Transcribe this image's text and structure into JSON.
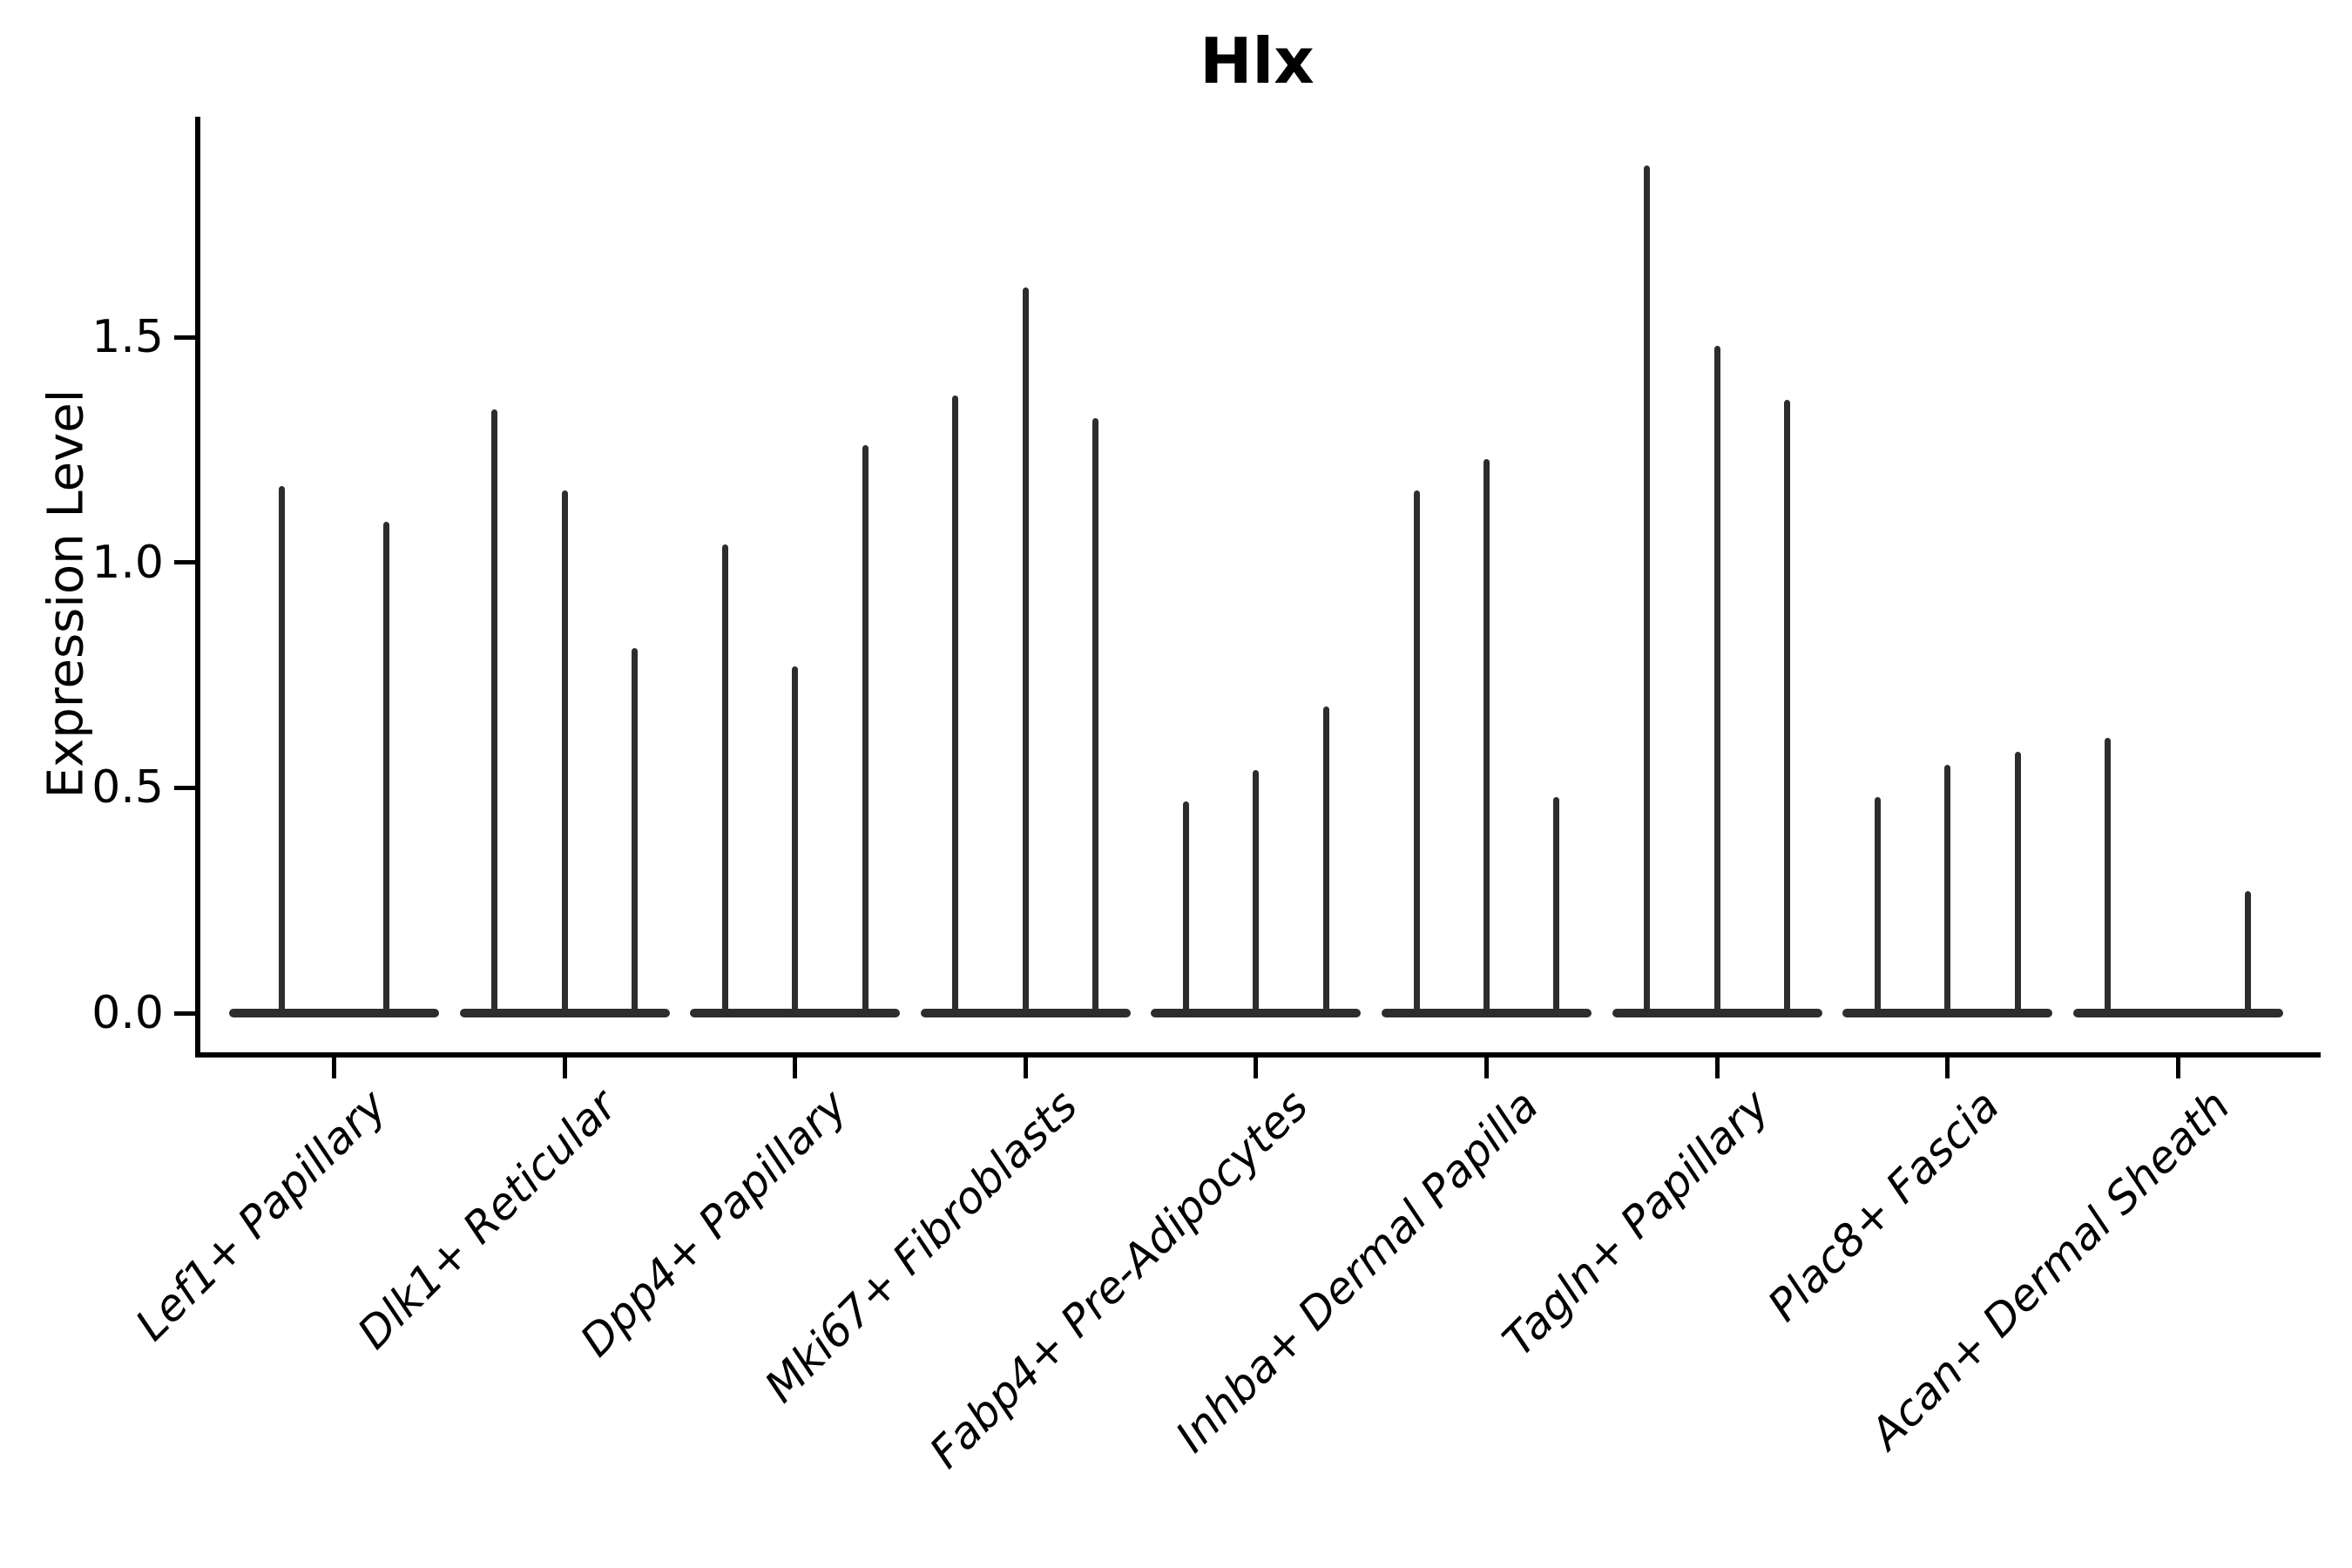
{
  "title": "Hlx",
  "y_axis": {
    "label": "Expression Level",
    "tick_labels": [
      "0.0",
      "0.5",
      "1.0",
      "1.5"
    ],
    "tick_values": [
      0.0,
      0.5,
      1.0,
      1.5
    ]
  },
  "chart_data": {
    "type": "violin",
    "title": "Hlx",
    "xlabel": "",
    "ylabel": "Expression Level",
    "ylim": [
      0,
      1.97
    ],
    "yticks": [
      0.0,
      0.5,
      1.0,
      1.5
    ],
    "grid": false,
    "legend": "none",
    "categories": [
      "Lef1+ Papillary",
      "Dlk1+ Reticular",
      "Dpp4+ Papillary",
      "Mki67+ Fibroblasts",
      "Fabp4+ Pre-Adipocytes",
      "Inhba+ Dermal Papilla",
      "Tagln+ Papillary",
      "Plac8+ Fascia",
      "Acan+ Dermal Sheath"
    ],
    "violin_style": "density concentrated at 0 (wide flat base) with thin spike rising to the max expression value",
    "groups": [
      {
        "category": "Lef1+ Papillary",
        "violin_maxima": [
          1.17,
          1.09
        ]
      },
      {
        "category": "Dlk1+ Reticular",
        "violin_maxima": [
          1.34,
          1.16,
          0.81
        ]
      },
      {
        "category": "Dpp4+ Papillary",
        "violin_maxima": [
          1.04,
          0.77,
          1.26
        ]
      },
      {
        "category": "Mki67+ Fibroblasts",
        "violin_maxima": [
          1.37,
          1.61,
          1.32
        ]
      },
      {
        "category": "Fabp4+ Pre-Adipocytes",
        "violin_maxima": [
          0.47,
          0.54,
          0.68
        ]
      },
      {
        "category": "Inhba+ Dermal Papilla",
        "violin_maxima": [
          1.16,
          1.23,
          0.48
        ]
      },
      {
        "category": "Tagln+ Papillary",
        "violin_maxima": [
          1.88,
          1.48,
          1.36
        ]
      },
      {
        "category": "Plac8+ Fascia",
        "violin_maxima": [
          0.48,
          0.55,
          0.58
        ]
      },
      {
        "category": "Acan+ Dermal Sheath",
        "violin_maxima": [
          0.61,
          null,
          0.27
        ]
      }
    ],
    "line_color": "#2d2d2d",
    "text_color": "#000000"
  }
}
